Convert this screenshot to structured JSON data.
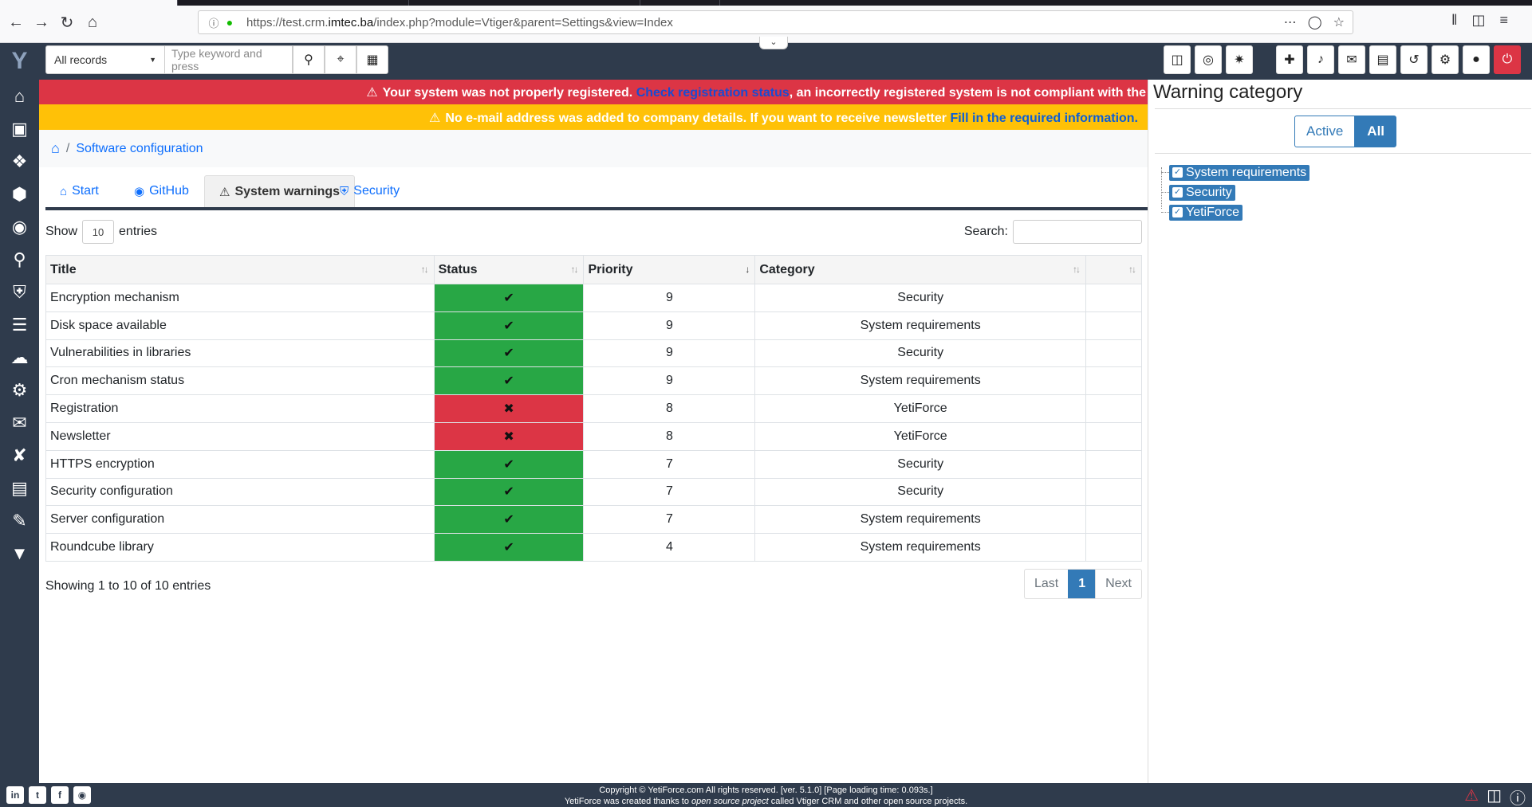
{
  "browser": {
    "url_prefix": "https://test.crm.",
    "url_domain": "imtec.ba",
    "url_path": "/index.php?module=Vtiger&parent=Settings&view=Index"
  },
  "header": {
    "records_select": "All records",
    "search_placeholder": "Type keyword and press"
  },
  "alerts": {
    "red_text": "Your system was not properly registered.",
    "red_link": "Check registration status",
    "red_tail": ", an incorrectly registered system is not compliant with the",
    "yellow_text": "No e-mail address was added to company details. If you want to receive newsletter",
    "yellow_link": "Fill in the required information."
  },
  "breadcrumb": {
    "item": "Software configuration"
  },
  "tabs": [
    {
      "label": "Start"
    },
    {
      "label": "GitHub"
    },
    {
      "label": "System warnings"
    },
    {
      "label": "Security"
    }
  ],
  "table": {
    "show_label": "Show",
    "length": "10",
    "entries_label": "entries",
    "search_label": "Search:",
    "columns": [
      "Title",
      "Status",
      "Priority",
      "Category",
      ""
    ],
    "rows": [
      {
        "title": "Encryption mechanism",
        "status": "ok",
        "priority": "9",
        "category": "Security"
      },
      {
        "title": "Disk space available",
        "status": "ok",
        "priority": "9",
        "category": "System requirements"
      },
      {
        "title": "Vulnerabilities in libraries",
        "status": "ok",
        "priority": "9",
        "category": "Security"
      },
      {
        "title": "Cron mechanism status",
        "status": "ok",
        "priority": "9",
        "category": "System requirements"
      },
      {
        "title": "Registration",
        "status": "fail",
        "priority": "8",
        "category": "YetiForce"
      },
      {
        "title": "Newsletter",
        "status": "fail",
        "priority": "8",
        "category": "YetiForce"
      },
      {
        "title": "HTTPS encryption",
        "status": "ok",
        "priority": "7",
        "category": "Security"
      },
      {
        "title": "Security configuration",
        "status": "ok",
        "priority": "7",
        "category": "Security"
      },
      {
        "title": "Server configuration",
        "status": "ok",
        "priority": "7",
        "category": "System requirements"
      },
      {
        "title": "Roundcube library",
        "status": "ok",
        "priority": "4",
        "category": "System requirements"
      }
    ],
    "info": "Showing 1 to 10 of 10 entries",
    "pager": {
      "last": "Last",
      "current": "1",
      "next": "Next"
    }
  },
  "warning_panel": {
    "title": "Warning category",
    "toggle_active": "Active",
    "toggle_all": "All",
    "categories": [
      "System requirements",
      "Security",
      "YetiForce"
    ]
  },
  "footer": {
    "line1": "Copyright © YetiForce.com All rights reserved. [ver. 5.1.0] [Page loading time: 0.093s.]",
    "line2_a": "YetiForce was created thanks to ",
    "line2_em": "open source project",
    "line2_b": " called Vtiger CRM and other open source projects."
  },
  "colors": {
    "nav_bg": "#2f3b4c",
    "danger": "#dc3545",
    "warning": "#ffc107",
    "success": "#28a745",
    "primary": "#337ab7"
  }
}
